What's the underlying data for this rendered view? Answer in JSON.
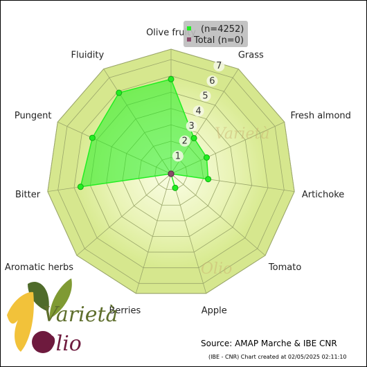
{
  "chart_data": {
    "type": "radar",
    "axes": [
      "Olive fruity",
      "Grass",
      "Fresh almond",
      "Artichoke",
      "Tomato",
      "Apple",
      "Berries",
      "Aromatic herbs",
      "Bitter",
      "Pungent",
      "Fluidity"
    ],
    "rlim": [
      0,
      7
    ],
    "ticks": [
      "1",
      "2",
      "3",
      "4",
      "5",
      "6",
      "7"
    ],
    "series": [
      {
        "name": "(n=4252)",
        "color": "#22ee22",
        "values": [
          5.8,
          2.6,
          2.4,
          2.3,
          0,
          0.9,
          0,
          0,
          5.6,
          5.3,
          5.9
        ]
      },
      {
        "name": "Total (n=0)",
        "color": "#8b4a6b",
        "values": [
          0,
          0,
          0,
          0,
          0,
          0,
          0,
          0,
          0,
          0,
          0
        ]
      }
    ],
    "legend_position": "top-right"
  },
  "source": "Source: AMAP Marche & IBE CNR",
  "credit": "(IBE - CNR) Chart created at 02/05/2025 02:11:10",
  "logo": {
    "text_top": "Varietà",
    "text_bottom": "Olio"
  }
}
